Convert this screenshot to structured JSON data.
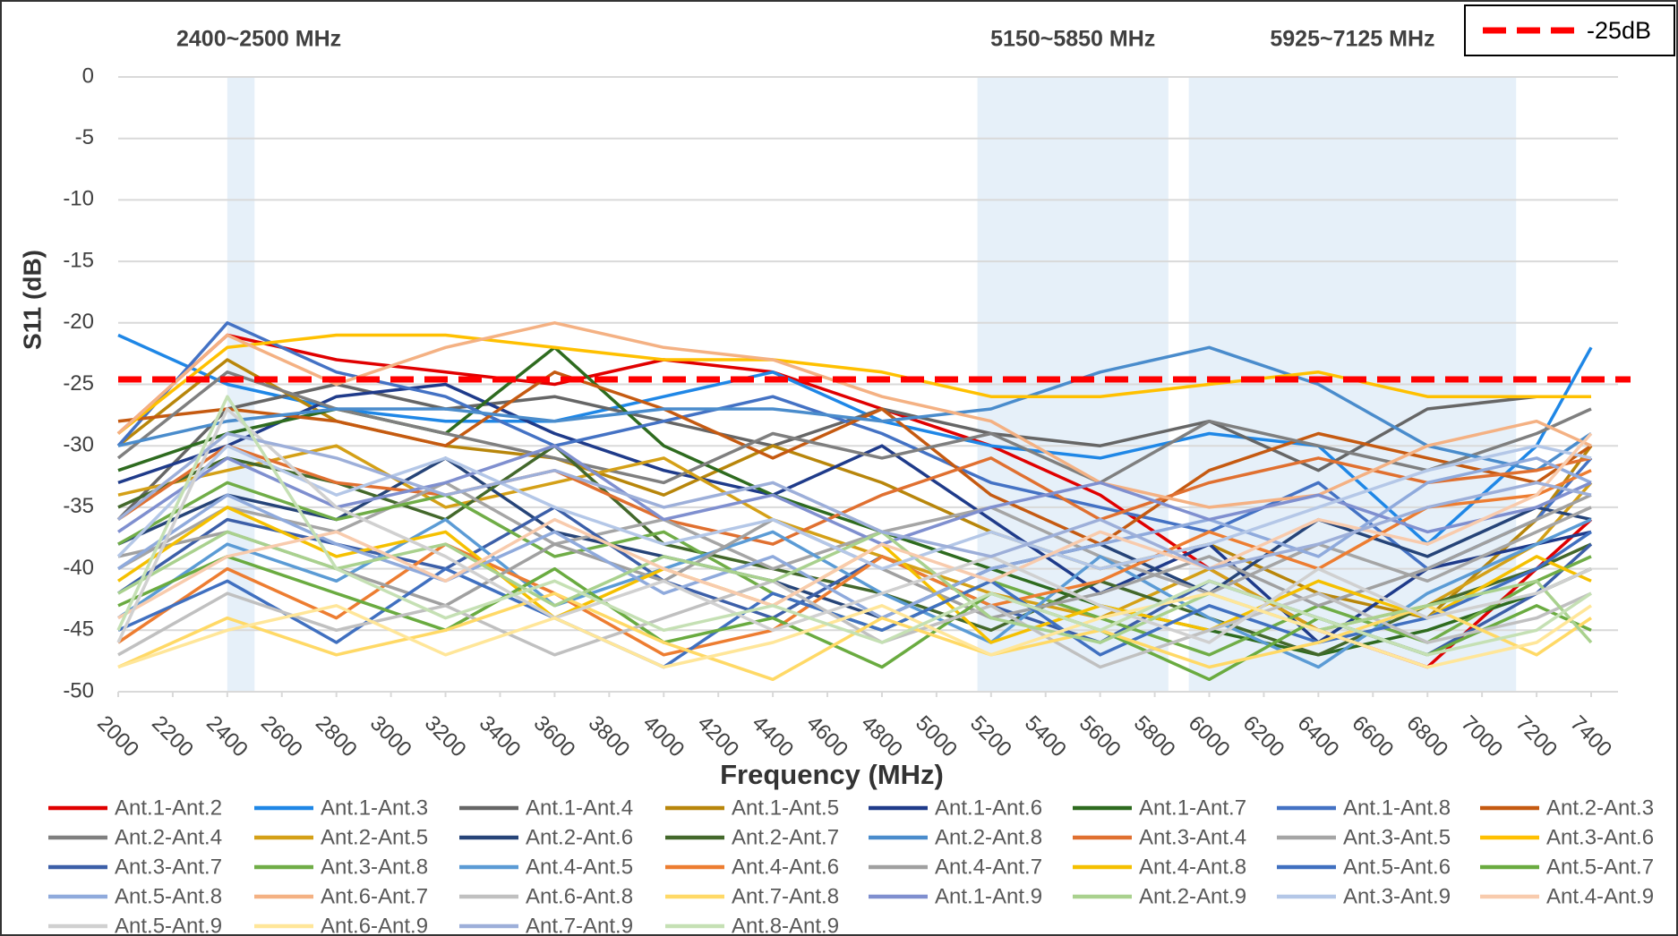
{
  "chart_data": {
    "type": "line",
    "x_label": "Frequency (MHz)",
    "y_label": "S11 (dB)",
    "xlim": [
      2000,
      7400
    ],
    "ylim": [
      -50,
      0
    ],
    "xticks": [
      2000,
      2200,
      2400,
      2600,
      2800,
      3000,
      3200,
      3400,
      3600,
      3800,
      4000,
      4200,
      4400,
      4600,
      4800,
      5000,
      5200,
      5400,
      5600,
      5800,
      6000,
      6200,
      6400,
      6600,
      6800,
      7000,
      7200,
      7400
    ],
    "yticks": [
      0,
      -5,
      -10,
      -15,
      -20,
      -25,
      -30,
      -35,
      -40,
      -45,
      -50
    ],
    "grid": true,
    "bands": [
      {
        "label": "2400~2500 MHz",
        "range": [
          2400,
          2500
        ]
      },
      {
        "label": "5150~5850 MHz",
        "range": [
          5150,
          5850
        ]
      },
      {
        "label": "5925~7125 MHz",
        "range": [
          5925,
          7125
        ]
      }
    ],
    "threshold": {
      "name": "-25dB",
      "value": -24.6,
      "color": "#ff0000"
    },
    "x": [
      2000,
      2400,
      2800,
      3200,
      3600,
      4000,
      4400,
      4800,
      5200,
      5600,
      6000,
      6400,
      6800,
      7200,
      7400
    ],
    "series": [
      {
        "name": "Ant.1-Ant.2",
        "color": "#e00000",
        "values": [
          -29,
          -21,
          -23,
          -24,
          -25,
          -23,
          -24,
          -27,
          -30,
          -34,
          -40,
          -45,
          -48,
          -40,
          -36
        ]
      },
      {
        "name": "Ant.1-Ant.3",
        "color": "#1f87e6",
        "values": [
          -21,
          -25,
          -27,
          -28,
          -28,
          -26,
          -24,
          -28,
          -30,
          -31,
          -29,
          -30,
          -38,
          -30,
          -22
        ]
      },
      {
        "name": "Ant.1-Ant.4",
        "color": "#666666",
        "values": [
          -36,
          -27,
          -25,
          -27,
          -26,
          -28,
          -30,
          -27,
          -29,
          -30,
          -28,
          -32,
          -27,
          -26,
          -26
        ]
      },
      {
        "name": "Ant.1-Ant.5",
        "color": "#b8860b",
        "values": [
          -30,
          -23,
          -28,
          -30,
          -31,
          -34,
          -30,
          -33,
          -37,
          -40,
          -38,
          -42,
          -44,
          -36,
          -30
        ]
      },
      {
        "name": "Ant.1-Ant.6",
        "color": "#1f3b8a",
        "values": [
          -33,
          -30,
          -26,
          -25,
          -29,
          -32,
          -34,
          -30,
          -36,
          -42,
          -38,
          -46,
          -40,
          -38,
          -37
        ]
      },
      {
        "name": "Ant.1-Ant.7",
        "color": "#2e6b1f",
        "values": [
          -32,
          -29,
          -27,
          -29,
          -22,
          -30,
          -34,
          -37,
          -40,
          -43,
          -45,
          -47,
          -45,
          -42,
          -40
        ]
      },
      {
        "name": "Ant.1-Ant.8",
        "color": "#4472c4",
        "values": [
          -30,
          -20,
          -24,
          -26,
          -30,
          -28,
          -26,
          -29,
          -33,
          -35,
          -37,
          -33,
          -40,
          -36,
          -31
        ]
      },
      {
        "name": "Ant.2-Ant.3",
        "color": "#c55a11",
        "values": [
          -28,
          -27,
          -28,
          -30,
          -24,
          -27,
          -31,
          -27,
          -34,
          -38,
          -32,
          -29,
          -31,
          -33,
          -30
        ]
      },
      {
        "name": "Ant.2-Ant.4",
        "color": "#7f7f7f",
        "values": [
          -31,
          -24,
          -27,
          -29,
          -31,
          -33,
          -29,
          -31,
          -29,
          -33,
          -28,
          -30,
          -32,
          -29,
          -27
        ]
      },
      {
        "name": "Ant.2-Ant.5",
        "color": "#d4a017",
        "values": [
          -34,
          -32,
          -30,
          -35,
          -33,
          -31,
          -36,
          -39,
          -42,
          -44,
          -40,
          -45,
          -43,
          -38,
          -33
        ]
      },
      {
        "name": "Ant.2-Ant.6",
        "color": "#264478",
        "values": [
          -38,
          -34,
          -36,
          -31,
          -37,
          -39,
          -41,
          -44,
          -40,
          -38,
          -42,
          -36,
          -39,
          -35,
          -36
        ]
      },
      {
        "name": "Ant.2-Ant.7",
        "color": "#43682b",
        "values": [
          -35,
          -31,
          -33,
          -36,
          -30,
          -38,
          -40,
          -42,
          -45,
          -41,
          -44,
          -47,
          -43,
          -40,
          -38
        ]
      },
      {
        "name": "Ant.2-Ant.8",
        "color": "#4a8ccc",
        "values": [
          -30,
          -28,
          -27,
          -27,
          -28,
          -27,
          -27,
          -28,
          -27,
          -24,
          -22,
          -25,
          -30,
          -32,
          -29
        ]
      },
      {
        "name": "Ant.3-Ant.4",
        "color": "#e07030",
        "values": [
          -36,
          -30,
          -33,
          -34,
          -32,
          -36,
          -38,
          -34,
          -31,
          -36,
          -33,
          -31,
          -33,
          -32,
          -31
        ]
      },
      {
        "name": "Ant.3-Ant.5",
        "color": "#a5a5a5",
        "values": [
          -40,
          -35,
          -37,
          -33,
          -38,
          -36,
          -40,
          -37,
          -35,
          -39,
          -42,
          -38,
          -41,
          -37,
          -35
        ]
      },
      {
        "name": "Ant.3-Ant.6",
        "color": "#ffc000",
        "values": [
          -29,
          -22,
          -21,
          -21,
          -22,
          -23,
          -23,
          -24,
          -26,
          -26,
          -25,
          -24,
          -26,
          -26,
          -26
        ]
      },
      {
        "name": "Ant.3-Ant.7",
        "color": "#3c5fa8",
        "values": [
          -42,
          -36,
          -38,
          -40,
          -35,
          -41,
          -44,
          -39,
          -43,
          -46,
          -41,
          -44,
          -47,
          -42,
          -38
        ]
      },
      {
        "name": "Ant.3-Ant.8",
        "color": "#70ad47",
        "values": [
          -38,
          -33,
          -36,
          -34,
          -39,
          -37,
          -42,
          -45,
          -41,
          -44,
          -47,
          -43,
          -46,
          -41,
          -39
        ]
      },
      {
        "name": "Ant.4-Ant.5",
        "color": "#5b9bd5",
        "values": [
          -44,
          -38,
          -41,
          -36,
          -43,
          -40,
          -37,
          -42,
          -46,
          -39,
          -44,
          -48,
          -42,
          -38,
          -36
        ]
      },
      {
        "name": "Ant.4-Ant.6",
        "color": "#ed7d31",
        "values": [
          -46,
          -40,
          -44,
          -38,
          -42,
          -47,
          -45,
          -39,
          -43,
          -41,
          -37,
          -40,
          -35,
          -34,
          -32
        ]
      },
      {
        "name": "Ant.4-Ant.7",
        "color": "#a0a0a0",
        "values": [
          -39,
          -37,
          -40,
          -43,
          -38,
          -41,
          -36,
          -40,
          -44,
          -42,
          -39,
          -43,
          -40,
          -36,
          -34
        ]
      },
      {
        "name": "Ant.4-Ant.8",
        "color": "#f5c000",
        "values": [
          -41,
          -35,
          -39,
          -37,
          -44,
          -40,
          -43,
          -38,
          -46,
          -43,
          -45,
          -41,
          -44,
          -39,
          -41
        ]
      },
      {
        "name": "Ant.5-Ant.6",
        "color": "#4070c0",
        "values": [
          -45,
          -41,
          -46,
          -40,
          -44,
          -48,
          -42,
          -45,
          -41,
          -47,
          -43,
          -46,
          -44,
          -40,
          -37
        ]
      },
      {
        "name": "Ant.5-Ant.7",
        "color": "#6aab40",
        "values": [
          -43,
          -39,
          -42,
          -45,
          -40,
          -46,
          -44,
          -48,
          -42,
          -45,
          -49,
          -44,
          -47,
          -43,
          -45
        ]
      },
      {
        "name": "Ant.5-Ant.8",
        "color": "#8faadc",
        "values": [
          -40,
          -34,
          -38,
          -41,
          -37,
          -42,
          -39,
          -44,
          -40,
          -38,
          -36,
          -39,
          -33,
          -31,
          -33
        ]
      },
      {
        "name": "Ant.6-Ant.7",
        "color": "#f4b183",
        "values": [
          -29,
          -21,
          -25,
          -22,
          -20,
          -22,
          -23,
          -26,
          -28,
          -33,
          -35,
          -34,
          -30,
          -28,
          -30
        ]
      },
      {
        "name": "Ant.6-Ant.8",
        "color": "#c0c0c0",
        "values": [
          -47,
          -42,
          -45,
          -43,
          -47,
          -44,
          -41,
          -46,
          -43,
          -48,
          -45,
          -42,
          -46,
          -44,
          -42
        ]
      },
      {
        "name": "Ant.7-Ant.8",
        "color": "#ffd966",
        "values": [
          -48,
          -44,
          -47,
          -45,
          -42,
          -46,
          -49,
          -44,
          -47,
          -45,
          -48,
          -46,
          -43,
          -47,
          -44
        ]
      },
      {
        "name": "Ant.1-Ant.9",
        "color": "#7f8fcf",
        "values": [
          -37,
          -31,
          -35,
          -33,
          -30,
          -36,
          -34,
          -38,
          -35,
          -33,
          -36,
          -34,
          -37,
          -35,
          -33
        ]
      },
      {
        "name": "Ant.2-Ant.9",
        "color": "#a9d18e",
        "values": [
          -42,
          -37,
          -40,
          -38,
          -43,
          -39,
          -41,
          -37,
          -44,
          -46,
          -42,
          -45,
          -43,
          -41,
          -46
        ]
      },
      {
        "name": "Ant.3-Ant.9",
        "color": "#b4c7e7",
        "values": [
          -39,
          -30,
          -34,
          -31,
          -35,
          -38,
          -36,
          -40,
          -37,
          -40,
          -38,
          -35,
          -32,
          -30,
          -31
        ]
      },
      {
        "name": "Ant.4-Ant.9",
        "color": "#f8cbad",
        "values": [
          -44,
          -39,
          -37,
          -41,
          -36,
          -40,
          -43,
          -38,
          -41,
          -37,
          -40,
          -36,
          -38,
          -34,
          -29
        ]
      },
      {
        "name": "Ant.5-Ant.9",
        "color": "#d0d0d0",
        "values": [
          -46,
          -27,
          -35,
          -39,
          -44,
          -41,
          -45,
          -42,
          -39,
          -43,
          -46,
          -40,
          -44,
          -42,
          -40
        ]
      },
      {
        "name": "Ant.6-Ant.9",
        "color": "#ffe699",
        "values": [
          -48,
          -45,
          -43,
          -47,
          -44,
          -48,
          -46,
          -43,
          -47,
          -44,
          -42,
          -45,
          -48,
          -46,
          -43
        ]
      },
      {
        "name": "Ant.7-Ant.9",
        "color": "#9dafd9",
        "values": [
          -36,
          -29,
          -31,
          -34,
          -32,
          -35,
          -33,
          -37,
          -39,
          -36,
          -40,
          -38,
          -35,
          -33,
          -34
        ]
      },
      {
        "name": "Ant.8-Ant.9",
        "color": "#c5e0b4",
        "values": [
          -45,
          -26,
          -40,
          -44,
          -41,
          -45,
          -43,
          -46,
          -42,
          -45,
          -41,
          -44,
          -47,
          -45,
          -42
        ]
      }
    ]
  }
}
